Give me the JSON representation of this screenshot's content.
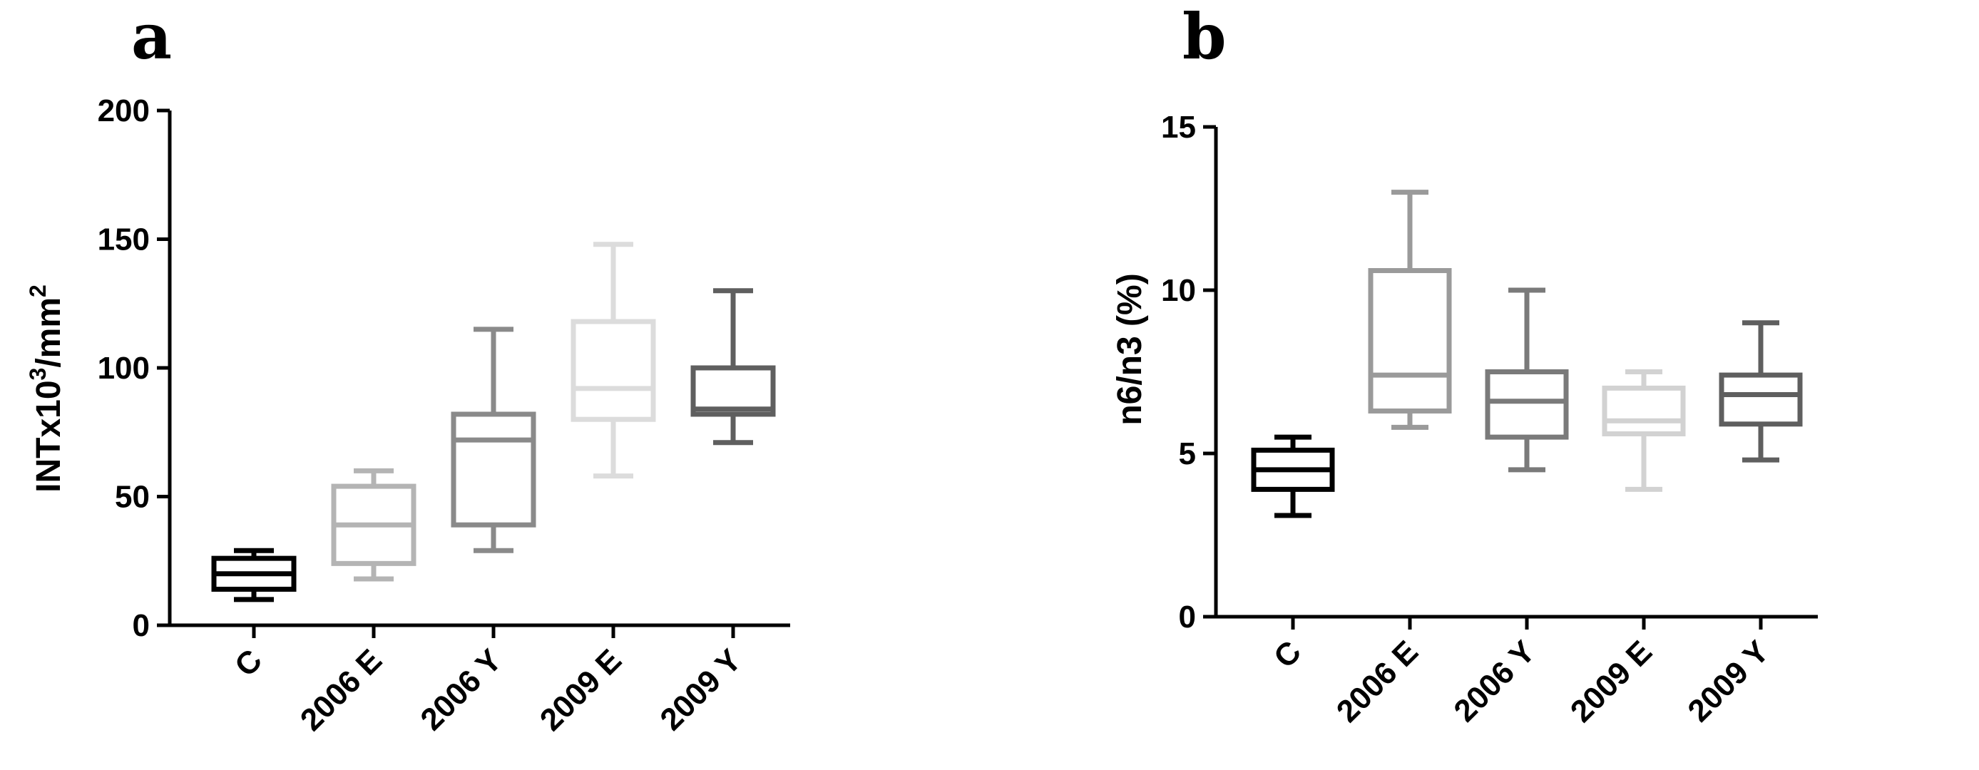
{
  "chart_data": [
    {
      "type": "box",
      "panel": "a",
      "ylabel": "INTx10",
      "ylabel_sup1": "3",
      "ylabel_mid": "/mm",
      "ylabel_sup2": "2",
      "ylim": [
        0,
        200
      ],
      "yticks": [
        "0",
        "50",
        "100",
        "150",
        "200"
      ],
      "categories": [
        "C",
        "2006 E",
        "2006 Y",
        "2009 E",
        "2009 Y"
      ],
      "colors": [
        "#000000",
        "#b4b4b4",
        "#8a8a8a",
        "#dcdcdc",
        "#5f5f5f"
      ],
      "boxes": [
        {
          "min": 10,
          "q1": 14,
          "median": 20,
          "q3": 26,
          "max": 29
        },
        {
          "min": 18,
          "q1": 24,
          "median": 39,
          "q3": 54,
          "max": 60
        },
        {
          "min": 29,
          "q1": 39,
          "median": 72,
          "q3": 82,
          "max": 115
        },
        {
          "min": 58,
          "q1": 80,
          "median": 92,
          "q3": 118,
          "max": 148
        },
        {
          "min": 71,
          "q1": 82,
          "median": 84,
          "q3": 100,
          "max": 130
        }
      ]
    },
    {
      "type": "box",
      "panel": "b",
      "ylabel": "n6/n3 (%)",
      "ylim": [
        0,
        15
      ],
      "yticks": [
        "0",
        "5",
        "10",
        "15"
      ],
      "categories": [
        "C",
        "2006 E",
        "2006 Y",
        "2009 E",
        "2009 Y"
      ],
      "colors": [
        "#000000",
        "#9a9a9a",
        "#7a7a7a",
        "#d2d2d2",
        "#5f5f5f"
      ],
      "boxes": [
        {
          "min": 3.1,
          "q1": 3.9,
          "median": 4.5,
          "q3": 5.1,
          "max": 5.5
        },
        {
          "min": 5.8,
          "q1": 6.3,
          "median": 7.4,
          "q3": 10.6,
          "max": 13.0
        },
        {
          "min": 4.5,
          "q1": 5.5,
          "median": 6.6,
          "q3": 7.5,
          "max": 10.0
        },
        {
          "min": 3.9,
          "q1": 5.6,
          "median": 6.0,
          "q3": 7.0,
          "max": 7.5
        },
        {
          "min": 4.8,
          "q1": 5.9,
          "median": 6.8,
          "q3": 7.4,
          "max": 9.0
        }
      ]
    }
  ]
}
